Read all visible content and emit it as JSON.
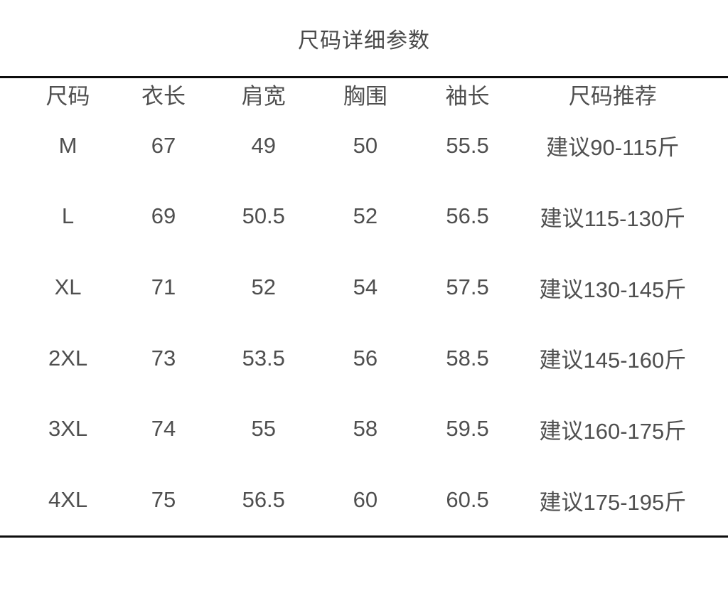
{
  "title": "尺码详细参数",
  "colors": {
    "background": "#ffffff",
    "text": "#4f4f4f",
    "divider": "#0d0d0d"
  },
  "table": {
    "headers": [
      "尺码",
      "衣长",
      "肩宽",
      "胸围",
      "袖长",
      "尺码推荐"
    ],
    "rows": [
      [
        "M",
        "67",
        "49",
        "50",
        "55.5",
        "建议90-115斤"
      ],
      [
        "L",
        "69",
        "50.5",
        "52",
        "56.5",
        "建议115-130斤"
      ],
      [
        "XL",
        "71",
        "52",
        "54",
        "57.5",
        "建议130-145斤"
      ],
      [
        "2XL",
        "73",
        "53.5",
        "56",
        "58.5",
        "建议145-160斤"
      ],
      [
        "3XL",
        "74",
        "55",
        "58",
        "59.5",
        "建议160-175斤"
      ],
      [
        "4XL",
        "75",
        "56.5",
        "60",
        "60.5",
        "建议175-195斤"
      ]
    ]
  }
}
